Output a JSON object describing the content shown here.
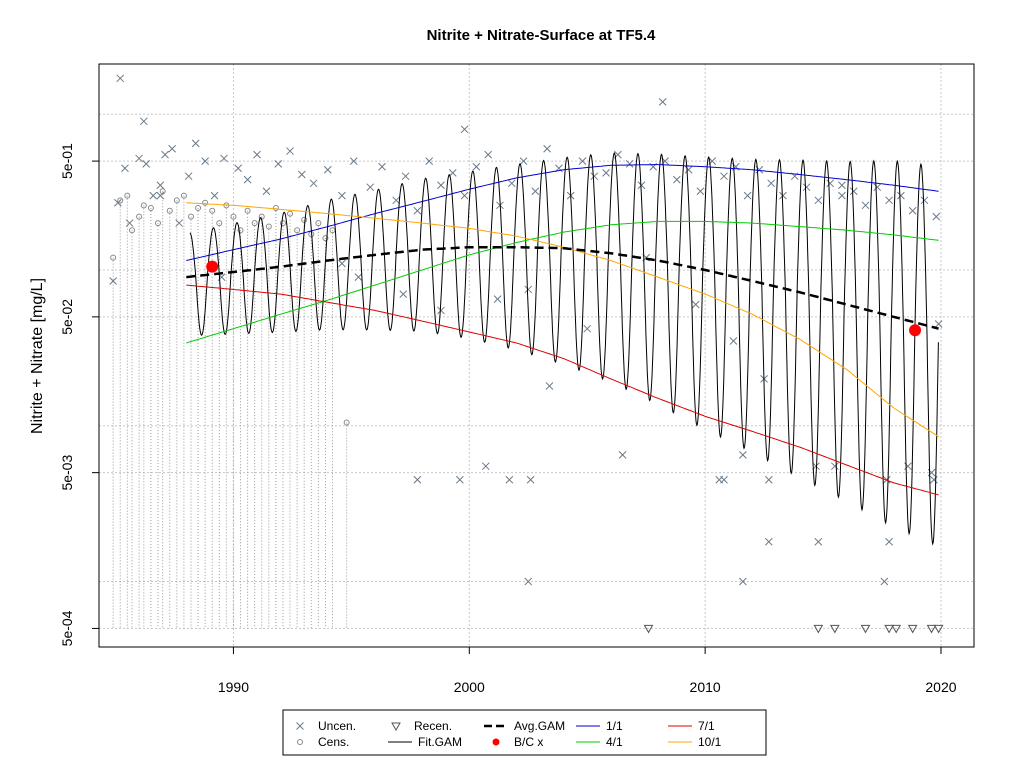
{
  "chart_data": {
    "type": "line",
    "title": "Nitrite + Nitrate-Surface at TF5.4",
    "xlabel": "",
    "ylabel": "Nitrite + Nitrate [mg/L]",
    "y_scale": "log",
    "xlim": [
      1984.3,
      2021.4
    ],
    "ylim": [
      0.00038,
      2.1
    ],
    "x_ticks": [
      1990,
      2000,
      2010,
      2020
    ],
    "x_tick_labels": [
      "1990",
      "2000",
      "2010",
      "2020"
    ],
    "y_ticks": [
      0.0005,
      0.005,
      0.05,
      0.5
    ],
    "y_tick_labels": [
      "5e-04",
      "5e-03",
      "5e-02",
      "5e-01"
    ],
    "grid_y": [
      0.0005,
      0.001,
      0.005,
      0.01,
      0.05,
      0.1,
      0.5,
      1.0
    ],
    "grid_x": [
      1990,
      2000,
      2010,
      2020
    ],
    "grid": true,
    "legend_position": "bottom",
    "colors": {
      "uncen": "#6a7a8a",
      "cens": "#888888",
      "recen": "#555555",
      "fit_gam": "#000000",
      "avg_gam": "#000000",
      "bc": "#ff0000",
      "s1_1": "#0000cc",
      "s4_1": "#00cc00",
      "s7_1": "#dd0000",
      "s10_1": "#ffa500"
    },
    "series": [
      {
        "name": "1/1",
        "x": [
          1988,
          1990,
          1992,
          1994,
          1996,
          1998,
          2000,
          2002,
          2004,
          2006,
          2008,
          2010,
          2012,
          2014,
          2016,
          2018,
          2019.9
        ],
        "values": [
          0.115,
          0.135,
          0.158,
          0.19,
          0.23,
          0.275,
          0.33,
          0.39,
          0.44,
          0.47,
          0.475,
          0.46,
          0.44,
          0.41,
          0.38,
          0.35,
          0.32
        ]
      },
      {
        "name": "4/1",
        "x": [
          1988,
          1990,
          1992,
          1994,
          1996,
          1998,
          2000,
          2002,
          2004,
          2006,
          2008,
          2010,
          2012,
          2014,
          2016,
          2018,
          2019.9
        ],
        "values": [
          0.034,
          0.042,
          0.052,
          0.064,
          0.08,
          0.1,
          0.125,
          0.15,
          0.175,
          0.195,
          0.205,
          0.205,
          0.2,
          0.19,
          0.18,
          0.168,
          0.155
        ]
      },
      {
        "name": "7/1",
        "x": [
          1988,
          1990,
          1992,
          1994,
          1996,
          1998,
          2000,
          2002,
          2004,
          2006,
          2008,
          2010,
          2012,
          2014,
          2016,
          2018,
          2019.9
        ],
        "values": [
          0.08,
          0.075,
          0.07,
          0.062,
          0.055,
          0.047,
          0.04,
          0.034,
          0.027,
          0.02,
          0.015,
          0.0115,
          0.0092,
          0.0073,
          0.0056,
          0.0043,
          0.0036
        ]
      },
      {
        "name": "10/1",
        "x": [
          1988,
          1990,
          1992,
          1994,
          1996,
          1998,
          2000,
          2002,
          2004,
          2006,
          2008,
          2010,
          2012,
          2014,
          2016,
          2018,
          2019.9
        ],
        "values": [
          0.27,
          0.26,
          0.245,
          0.23,
          0.215,
          0.2,
          0.185,
          0.165,
          0.14,
          0.115,
          0.09,
          0.07,
          0.052,
          0.036,
          0.023,
          0.013,
          0.0085
        ]
      },
      {
        "name": "Avg.GAM",
        "x": [
          1988,
          1990,
          1992,
          1994,
          1996,
          1998,
          2000,
          2002,
          2004,
          2006,
          2008,
          2010,
          2012,
          2014,
          2016,
          2018,
          2019.9
        ],
        "values": [
          0.09,
          0.097,
          0.105,
          0.115,
          0.125,
          0.135,
          0.14,
          0.14,
          0.138,
          0.128,
          0.115,
          0.1,
          0.085,
          0.072,
          0.06,
          0.05,
          0.042
        ]
      }
    ],
    "fit_gam": {
      "name": "Fit.GAM",
      "start": 1988.15,
      "end": 2019.9,
      "period": 1.0,
      "peak_ratio": [
        1.9,
        2.05,
        2.2,
        2.45,
        2.6,
        2.85,
        3.05,
        3.4,
        3.8,
        4.4,
        4.8,
        5.3,
        6.0,
        7.0,
        8.2,
        10.0,
        11.0
      ],
      "trough_ratio": [
        0.42,
        0.4,
        0.38,
        0.36,
        0.33,
        0.3,
        0.26,
        0.22,
        0.18,
        0.15,
        0.12,
        0.095,
        0.08,
        0.065,
        0.055,
        0.045,
        0.04
      ]
    },
    "bc_points": {
      "name": "B/C x",
      "x": [
        1989.1,
        2018.9
      ],
      "values": [
        0.105,
        0.041
      ]
    },
    "uncensored_points": {
      "name": "Uncen.",
      "x": [
        1984.9,
        1985.1,
        1985.4,
        1985.6,
        1986.0,
        1986.3,
        1986.6,
        1986.9,
        1987.1,
        1987.4,
        1987.7,
        1988.1,
        1988.4,
        1988.8,
        1989.2,
        1989.6,
        1990.2,
        1990.6,
        1991.0,
        1991.4,
        1991.9,
        1992.4,
        1992.9,
        1993.4,
        1994.0,
        1994.6,
        1995.1,
        1995.8,
        1996.3,
        1996.9,
        1997.3,
        1997.8,
        1998.3,
        1998.8,
        1999.3,
        1999.8,
        2000.3,
        2000.8,
        2001.3,
        2001.8,
        2002.3,
        2002.8,
        2003.3,
        2003.8,
        2004.3,
        2004.8,
        2005.3,
        2005.8,
        2006.3,
        2006.8,
        2007.3,
        2007.8,
        2008.3,
        2008.8,
        2009.3,
        2009.8,
        2010.3,
        2010.8,
        2011.3,
        2011.8,
        2012.3,
        2012.8,
        2013.3,
        2013.8,
        2014.3,
        2014.8,
        2015.3,
        2015.8,
        2016.3,
        2016.8,
        2017.3,
        2017.8,
        2018.3,
        2018.8,
        2019.3,
        2019.8,
        1986.9,
        1989.5,
        1994.6,
        1997.2,
        1998.8,
        2001.2,
        2002.5,
        2003.4,
        2005.0,
        2007.5,
        2009.6,
        2011.2,
        2012.5,
        1997.8,
        1999.6,
        2000.7,
        2001.7,
        2002.6,
        2006.5,
        2010.6,
        2010.8,
        2011.6,
        2012.7,
        2014.7,
        2015.5,
        2017.7,
        2018.6,
        2019.7,
        2012.7,
        2014.8,
        2017.8,
        2011.6,
        2017.6,
        2002.5,
        2019.9,
        2019.6,
        1985.2,
        1986.2,
        1995.3,
        1999.8,
        2008.2,
        2015.8
      ],
      "values": [
        0.085,
        0.27,
        0.45,
        0.2,
        0.52,
        0.48,
        0.3,
        0.35,
        0.55,
        0.6,
        0.2,
        0.4,
        0.65,
        0.5,
        0.3,
        0.52,
        0.45,
        0.38,
        0.55,
        0.32,
        0.48,
        0.58,
        0.41,
        0.36,
        0.44,
        0.3,
        0.5,
        0.34,
        0.46,
        0.28,
        0.4,
        0.24,
        0.5,
        0.35,
        0.42,
        0.3,
        0.46,
        0.55,
        0.26,
        0.36,
        0.5,
        0.32,
        0.6,
        0.45,
        0.3,
        0.5,
        0.4,
        0.42,
        0.55,
        0.48,
        0.35,
        0.46,
        0.5,
        0.38,
        0.44,
        0.32,
        0.5,
        0.4,
        0.46,
        0.3,
        0.44,
        0.36,
        0.3,
        0.4,
        0.34,
        0.28,
        0.36,
        0.3,
        0.32,
        0.26,
        0.34,
        0.28,
        0.3,
        0.24,
        0.28,
        0.22,
        0.3,
        0.09,
        0.11,
        0.07,
        0.055,
        0.065,
        0.075,
        0.018,
        0.042,
        0.12,
        0.06,
        0.035,
        0.02,
        0.0045,
        0.0045,
        0.0055,
        0.0045,
        0.0045,
        0.0065,
        0.0045,
        0.0045,
        0.0065,
        0.0045,
        0.0055,
        0.0055,
        0.0045,
        0.0055,
        0.0045,
        0.0018,
        0.0018,
        0.0018,
        0.001,
        0.001,
        0.001,
        0.045,
        0.005,
        1.7,
        0.9,
        0.09,
        0.8,
        1.2,
        0.35
      ]
    },
    "censored_points": {
      "name": "Cens.",
      "x": [
        1984.9,
        1985.2,
        1985.5,
        1985.7,
        1986.0,
        1986.2,
        1986.5,
        1986.8,
        1987.0,
        1987.3,
        1987.6,
        1987.9,
        1988.2,
        1988.5,
        1988.8,
        1989.1,
        1989.4,
        1989.7,
        1990.0,
        1990.3,
        1990.6,
        1990.9,
        1991.2,
        1991.5,
        1991.8,
        1992.1,
        1992.4,
        1992.7,
        1993.0,
        1993.3,
        1993.6,
        1993.9,
        1994.2,
        1994.8
      ],
      "values": [
        0.12,
        0.28,
        0.3,
        0.18,
        0.22,
        0.26,
        0.25,
        0.2,
        0.32,
        0.24,
        0.28,
        0.3,
        0.22,
        0.25,
        0.27,
        0.24,
        0.2,
        0.26,
        0.22,
        0.18,
        0.24,
        0.2,
        0.22,
        0.19,
        0.25,
        0.2,
        0.23,
        0.18,
        0.21,
        0.17,
        0.2,
        0.16,
        0.18,
        0.0105
      ]
    },
    "recensored_points": {
      "name": "Recen.",
      "x": [
        2007.6,
        2014.8,
        2015.5,
        2016.8,
        2017.8,
        2018.1,
        2018.8,
        2019.6,
        2019.9
      ],
      "values": [
        0.0005,
        0.0005,
        0.0005,
        0.0005,
        0.0005,
        0.0005,
        0.0005,
        0.0005,
        0.0005
      ]
    }
  },
  "legend": {
    "items": [
      {
        "label": "Uncen.",
        "kind": "x-mark"
      },
      {
        "label": "Cens.",
        "kind": "circle"
      },
      {
        "label": "Recen.",
        "kind": "triangle"
      },
      {
        "label": "Fit.GAM",
        "kind": "line-black"
      },
      {
        "label": "Avg.GAM",
        "kind": "dash-black"
      },
      {
        "label": "B/C x",
        "kind": "red-dot"
      },
      {
        "label": "1/1",
        "kind": "line-blue"
      },
      {
        "label": "4/1",
        "kind": "line-green"
      },
      {
        "label": "7/1",
        "kind": "line-red"
      },
      {
        "label": "10/1",
        "kind": "line-orange"
      }
    ]
  }
}
